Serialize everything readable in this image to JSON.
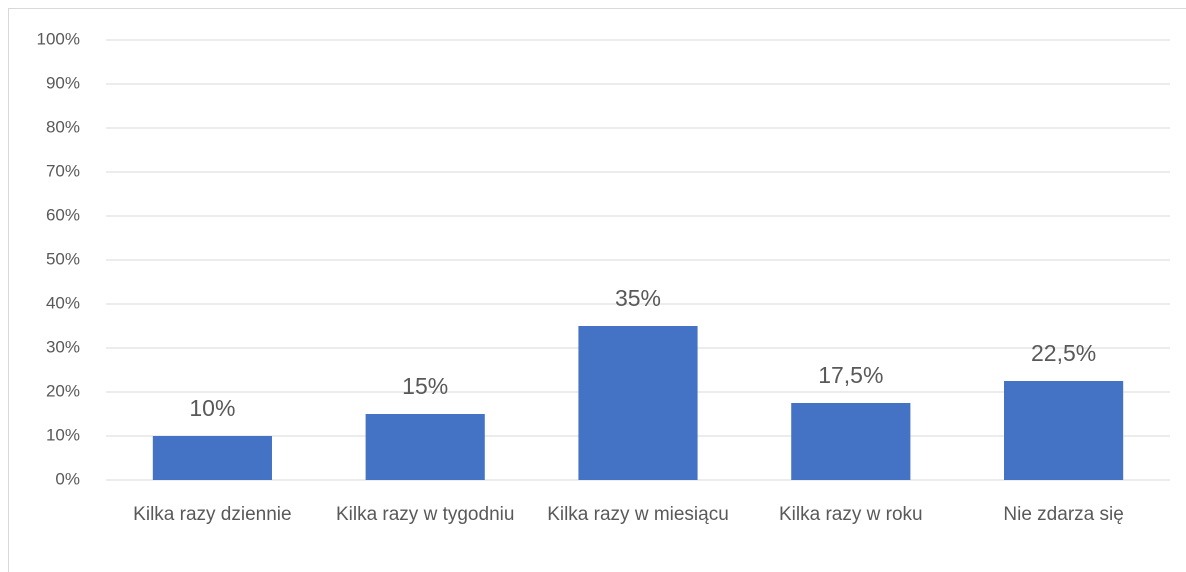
{
  "chart_data": {
    "type": "bar",
    "categories": [
      "Kilka razy dziennie",
      "Kilka razy w tygodniu",
      "Kilka razy w miesiącu",
      "Kilka razy w roku",
      "Nie zdarza się"
    ],
    "values": [
      10,
      15,
      35,
      17.5,
      22.5
    ],
    "value_labels": [
      "10%",
      "15%",
      "35%",
      "17,5%",
      "22,5%"
    ],
    "color": "#4472c4",
    "ylim": [
      0,
      100
    ],
    "yticks": [
      {
        "value": 0,
        "label": "0%"
      },
      {
        "value": 10,
        "label": "10%"
      },
      {
        "value": 20,
        "label": "20%"
      },
      {
        "value": 30,
        "label": "30%"
      },
      {
        "value": 40,
        "label": "40%"
      },
      {
        "value": 50,
        "label": "50%"
      },
      {
        "value": 60,
        "label": "60%"
      },
      {
        "value": 70,
        "label": "70%"
      },
      {
        "value": 80,
        "label": "80%"
      },
      {
        "value": 90,
        "label": "90%"
      },
      {
        "value": 100,
        "label": "100%"
      }
    ],
    "grid": true
  }
}
